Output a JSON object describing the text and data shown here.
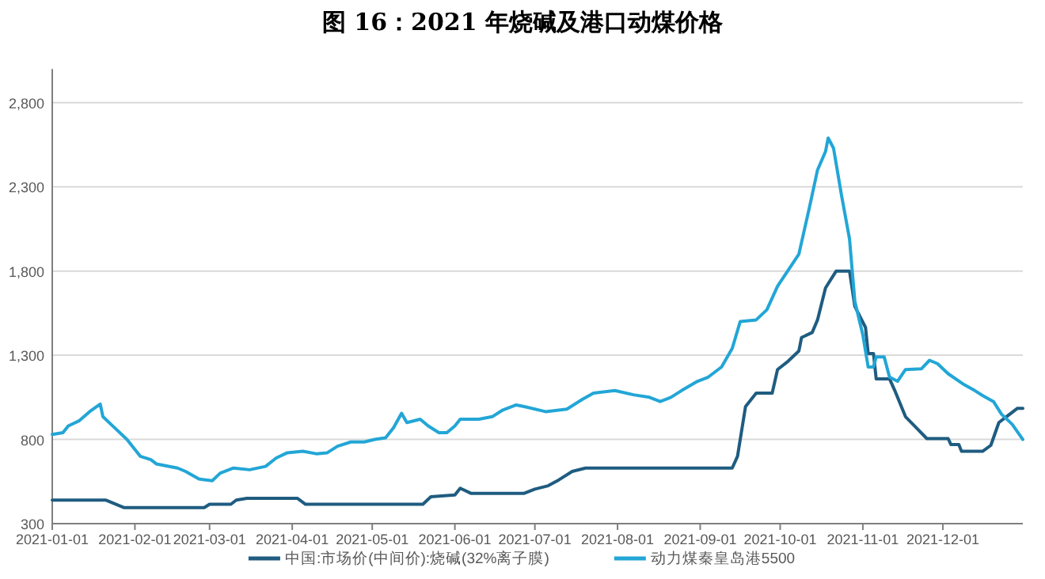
{
  "chart_data": {
    "type": "line",
    "title": "图 16：2021 年烧碱及港口动煤价格",
    "xlim": [
      "2021-01-01",
      "2021-12-31"
    ],
    "xticks": [
      "2021-01-01",
      "2021-02-01",
      "2021-03-01",
      "2021-04-01",
      "2021-05-01",
      "2021-06-01",
      "2021-07-01",
      "2021-08-01",
      "2021-09-01",
      "2021-10-01",
      "2021-11-01",
      "2021-12-01"
    ],
    "ylim": [
      300,
      3000
    ],
    "yticks": [
      300,
      800,
      {
        "value": 1300,
        "label": "1,300"
      },
      {
        "value": 1800,
        "label": "1,800"
      },
      {
        "value": 2300,
        "label": "2,300"
      },
      {
        "value": 2800,
        "label": "2,800"
      }
    ],
    "grid": "y",
    "legend": "bottom",
    "marker": "none",
    "line_style": "solid",
    "series": [
      {
        "name": "中国:市场价(中间价):烧碱(32%离子膜)",
        "color": "#1f5c80",
        "x": [
          "2021-01-01",
          "2021-01-21",
          "2021-01-28",
          "2021-02-27",
          "2021-03-01",
          "2021-03-09",
          "2021-03-11",
          "2021-03-15",
          "2021-04-03",
          "2021-04-06",
          "2021-05-20",
          "2021-05-23",
          "2021-06-01",
          "2021-06-03",
          "2021-06-07",
          "2021-06-27",
          "2021-07-01",
          "2021-07-06",
          "2021-07-10",
          "2021-07-15",
          "2021-07-20",
          "2021-09-13",
          "2021-09-15",
          "2021-09-18",
          "2021-09-22",
          "2021-09-28",
          "2021-09-30",
          "2021-10-04",
          "2021-10-08",
          "2021-10-09",
          "2021-10-13",
          "2021-10-15",
          "2021-10-18",
          "2021-10-22",
          "2021-10-27",
          "2021-10-29",
          "2021-11-02",
          "2021-11-03",
          "2021-11-05",
          "2021-11-06",
          "2021-11-11",
          "2021-11-13",
          "2021-11-17",
          "2021-11-21",
          "2021-11-25",
          "2021-12-03",
          "2021-12-04",
          "2021-12-07",
          "2021-12-08",
          "2021-12-16",
          "2021-12-19",
          "2021-12-22",
          "2021-12-29",
          "2021-12-31"
        ],
        "values": [
          440,
          440,
          395,
          395,
          415,
          415,
          440,
          450,
          450,
          415,
          415,
          460,
          470,
          510,
          480,
          480,
          505,
          525,
          560,
          610,
          630,
          630,
          700,
          995,
          1075,
          1075,
          1215,
          1265,
          1325,
          1405,
          1435,
          1510,
          1700,
          1800,
          1800,
          1590,
          1465,
          1310,
          1310,
          1160,
          1160,
          1090,
          935,
          870,
          805,
          805,
          770,
          770,
          730,
          730,
          765,
          900,
          985,
          985
        ]
      },
      {
        "name": "动力煤秦皇岛港5500",
        "color": "#22a6d6",
        "x": [
          "2021-01-01",
          "2021-01-05",
          "2021-01-07",
          "2021-01-11",
          "2021-01-15",
          "2021-01-19",
          "2021-01-20",
          "2021-01-23",
          "2021-01-29",
          "2021-02-03",
          "2021-02-07",
          "2021-02-09",
          "2021-02-17",
          "2021-02-20",
          "2021-02-25",
          "2021-03-02",
          "2021-03-05",
          "2021-03-10",
          "2021-03-16",
          "2021-03-22",
          "2021-03-26",
          "2021-03-30",
          "2021-04-05",
          "2021-04-10",
          "2021-04-14",
          "2021-04-18",
          "2021-04-23",
          "2021-04-28",
          "2021-05-02",
          "2021-05-06",
          "2021-05-09",
          "2021-05-12",
          "2021-05-14",
          "2021-05-19",
          "2021-05-22",
          "2021-05-26",
          "2021-05-29",
          "2021-06-01",
          "2021-06-03",
          "2021-06-10",
          "2021-06-15",
          "2021-06-19",
          "2021-06-24",
          "2021-06-27",
          "2021-07-05",
          "2021-07-13",
          "2021-07-19",
          "2021-07-23",
          "2021-07-31",
          "2021-08-07",
          "2021-08-13",
          "2021-08-17",
          "2021-08-21",
          "2021-08-25",
          "2021-08-31",
          "2021-09-04",
          "2021-09-09",
          "2021-09-13",
          "2021-09-16",
          "2021-09-22",
          "2021-09-26",
          "2021-09-30",
          "2021-10-08",
          "2021-10-12",
          "2021-10-15",
          "2021-10-18",
          "2021-10-19",
          "2021-10-21",
          "2021-10-24",
          "2021-10-27",
          "2021-10-29",
          "2021-11-01",
          "2021-11-03",
          "2021-11-05",
          "2021-11-06",
          "2021-11-09",
          "2021-11-11",
          "2021-11-14",
          "2021-11-17",
          "2021-11-23",
          "2021-11-26",
          "2021-11-29",
          "2021-12-03",
          "2021-12-09",
          "2021-12-13",
          "2021-12-16",
          "2021-12-20",
          "2021-12-23",
          "2021-12-27",
          "2021-12-31"
        ],
        "values": [
          830,
          840,
          880,
          910,
          965,
          1010,
          935,
          890,
          800,
          700,
          680,
          655,
          630,
          610,
          565,
          555,
          600,
          630,
          620,
          640,
          690,
          720,
          730,
          715,
          720,
          760,
          785,
          785,
          800,
          810,
          870,
          955,
          900,
          920,
          880,
          840,
          840,
          880,
          920,
          920,
          935,
          975,
          1005,
          995,
          965,
          980,
          1040,
          1075,
          1090,
          1065,
          1050,
          1025,
          1050,
          1090,
          1145,
          1170,
          1230,
          1340,
          1500,
          1510,
          1570,
          1710,
          1900,
          2180,
          2400,
          2510,
          2590,
          2530,
          2250,
          1990,
          1620,
          1420,
          1230,
          1230,
          1290,
          1290,
          1170,
          1145,
          1215,
          1220,
          1270,
          1250,
          1190,
          1125,
          1090,
          1060,
          1025,
          950,
          890,
          800
        ]
      }
    ]
  }
}
